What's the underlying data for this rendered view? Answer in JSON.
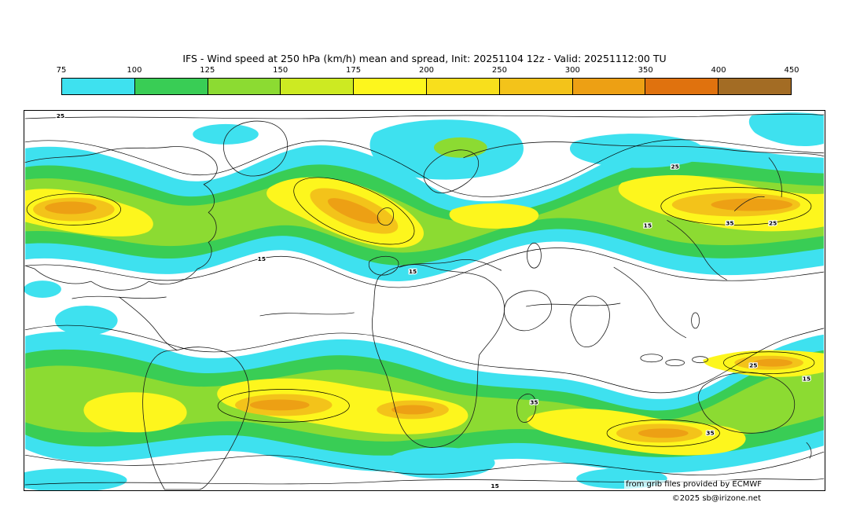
{
  "title": "IFS - Wind speed at 250 hPa (km/h) mean and spread, Init: 20251104 12z - Valid: 20251112:00 TU",
  "colorbar": {
    "tick_labels": [
      "75",
      "100",
      "125",
      "150",
      "175",
      "200",
      "250",
      "300",
      "350",
      "400",
      "450"
    ],
    "colors": [
      "#3ee1ef",
      "#39cd55",
      "#8cdb32",
      "#cdea22",
      "#fdf61d",
      "#f8df1c",
      "#f3c31a",
      "#eda014",
      "#e0720e",
      "#a36c24"
    ]
  },
  "map": {
    "contour_labels": {
      "v15": "15",
      "v25": "25",
      "v35": "35"
    }
  },
  "credits": {
    "source": "from grib files provided by ECMWF",
    "copyright": "©2025 sb@irizone.net"
  }
}
